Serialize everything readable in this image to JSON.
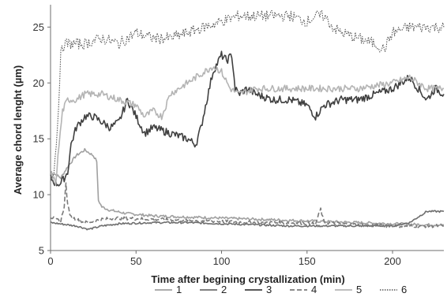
{
  "chart_data": {
    "type": "line",
    "xlabel": "Time after begining crystallization (min)",
    "ylabel": "Average chord lenght (µm)",
    "xlim": [
      0,
      230
    ],
    "ylim": [
      5,
      27
    ],
    "xticks": [
      0,
      50,
      100,
      150,
      200
    ],
    "yticks": [
      5,
      10,
      15,
      20,
      25
    ],
    "grid": false,
    "legend_position": "bottom",
    "series": [
      {
        "name": "1",
        "color": "#a0a0a0",
        "dash": "solid",
        "noise": 0.12,
        "x": [
          0,
          3,
          6,
          10,
          15,
          20,
          25,
          27,
          28,
          30,
          35,
          45,
          60,
          80,
          100,
          120,
          140,
          160,
          180,
          200,
          220,
          230
        ],
        "y": [
          12.0,
          11.8,
          11.5,
          12.5,
          13.5,
          14.0,
          13.5,
          13.0,
          9.5,
          8.9,
          8.6,
          8.3,
          8.1,
          8.0,
          7.9,
          7.8,
          7.7,
          7.6,
          7.5,
          7.4,
          7.3,
          7.3
        ]
      },
      {
        "name": "2",
        "color": "#6e6e6e",
        "dash": "solid",
        "noise": 0.08,
        "x": [
          0,
          5,
          10,
          15,
          20,
          22,
          25,
          30,
          40,
          60,
          80,
          100,
          120,
          140,
          160,
          180,
          200,
          210,
          215,
          220,
          225,
          230
        ],
        "y": [
          7.5,
          7.4,
          7.3,
          7.2,
          7.0,
          6.9,
          7.0,
          7.2,
          7.4,
          7.5,
          7.5,
          7.4,
          7.3,
          7.2,
          7.2,
          7.2,
          7.2,
          7.5,
          8.0,
          8.5,
          8.5,
          8.5
        ]
      },
      {
        "name": "3",
        "color": "#404040",
        "dash": "solid",
        "noise": 0.35,
        "x": [
          0,
          3,
          6,
          8,
          10,
          12,
          15,
          20,
          25,
          30,
          35,
          40,
          45,
          50,
          55,
          60,
          70,
          80,
          85,
          88,
          90,
          95,
          100,
          103,
          106,
          108,
          110,
          115,
          120,
          130,
          140,
          150,
          155,
          160,
          170,
          180,
          190,
          200,
          205,
          210,
          215,
          220,
          225,
          230
        ],
        "y": [
          11.5,
          11.0,
          11.0,
          11.5,
          12.0,
          14.5,
          16.0,
          17.0,
          17.0,
          16.5,
          16.0,
          16.5,
          18.5,
          17.0,
          15.5,
          16.0,
          15.5,
          15.0,
          14.5,
          16.0,
          17.5,
          21.0,
          22.5,
          22.0,
          22.5,
          19.5,
          19.0,
          19.5,
          19.0,
          18.5,
          18.5,
          18.0,
          17.0,
          18.0,
          18.5,
          18.5,
          19.0,
          19.5,
          20.0,
          20.5,
          19.5,
          18.5,
          19.5,
          19.0
        ]
      },
      {
        "name": "4",
        "color": "#7a7a7a",
        "dash": "6,3",
        "noise": 0.15,
        "x": [
          0,
          3,
          6,
          8,
          9,
          10,
          12,
          15,
          20,
          25,
          30,
          40,
          60,
          80,
          100,
          120,
          140,
          155,
          158,
          160,
          170,
          180,
          200,
          230
        ],
        "y": [
          8.0,
          7.8,
          7.6,
          9.0,
          11.0,
          9.0,
          8.0,
          7.8,
          7.5,
          7.6,
          7.8,
          7.9,
          7.8,
          7.7,
          7.6,
          7.5,
          7.5,
          7.4,
          8.7,
          7.5,
          7.4,
          7.3,
          7.2,
          7.2
        ]
      },
      {
        "name": "5",
        "color": "#b4b4b4",
        "dash": "solid",
        "noise": 0.3,
        "x": [
          0,
          3,
          5,
          7,
          10,
          15,
          20,
          30,
          40,
          50,
          55,
          60,
          65,
          70,
          80,
          90,
          95,
          100,
          105,
          110,
          120,
          140,
          160,
          180,
          200,
          210,
          220,
          230
        ],
        "y": [
          12.0,
          11.0,
          14.5,
          17.5,
          18.5,
          18.5,
          19.0,
          19.0,
          18.5,
          18.0,
          17.0,
          17.5,
          17.0,
          19.0,
          20.0,
          21.0,
          21.5,
          21.0,
          19.5,
          19.0,
          19.5,
          19.5,
          19.5,
          19.5,
          20.0,
          20.5,
          19.5,
          19.5
        ]
      },
      {
        "name": "6",
        "color": "#555555",
        "dash": "1.5,1.5",
        "noise": 0.5,
        "x": [
          0,
          2,
          4,
          6,
          8,
          10,
          20,
          30,
          40,
          50,
          60,
          70,
          80,
          90,
          100,
          110,
          120,
          130,
          140,
          150,
          155,
          160,
          165,
          170,
          180,
          190,
          195,
          200,
          210,
          220,
          230
        ],
        "y": [
          12.0,
          12.0,
          16.0,
          22.5,
          23.5,
          23.5,
          23.5,
          24.0,
          23.5,
          24.5,
          24.0,
          24.0,
          24.5,
          25.0,
          25.5,
          26.0,
          26.0,
          26.0,
          26.0,
          25.5,
          26.0,
          26.0,
          25.0,
          24.5,
          24.0,
          23.5,
          23.0,
          24.5,
          25.0,
          25.0,
          25.0
        ]
      }
    ]
  }
}
